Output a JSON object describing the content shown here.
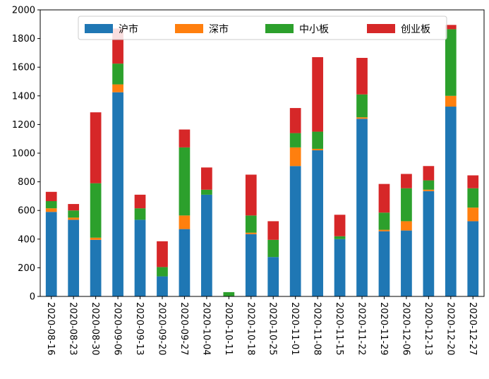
{
  "chart_data": {
    "type": "bar",
    "stacked": true,
    "title": "",
    "xlabel": "",
    "ylabel": "",
    "ylim": [
      0,
      2000
    ],
    "yticks": [
      0,
      200,
      400,
      600,
      800,
      1000,
      1200,
      1400,
      1600,
      1800,
      2000
    ],
    "ytick_labels": [
      "0",
      "200",
      "400",
      "600",
      "800",
      "1000",
      "1200",
      "1400",
      "1600",
      "1800",
      "2000"
    ],
    "grid": false,
    "legend_position": "top",
    "categories": [
      "2020-08-16",
      "2020-08-23",
      "2020-08-30",
      "2020-09-06",
      "2020-09-13",
      "2020-09-20",
      "2020-09-27",
      "2020-10-04",
      "2020-10-11",
      "2020-10-18",
      "2020-10-25",
      "2020-11-01",
      "2020-11-08",
      "2020-11-15",
      "2020-11-22",
      "2020-11-29",
      "2020-12-06",
      "2020-12-13",
      "2020-12-20",
      "2020-12-27"
    ],
    "series": [
      {
        "name": "沪市",
        "color": "#1f77b4",
        "values": [
          590,
          535,
          395,
          1425,
          535,
          140,
          470,
          710,
          0,
          435,
          275,
          910,
          1020,
          400,
          1240,
          455,
          460,
          735,
          1325,
          525
        ]
      },
      {
        "name": "深市",
        "color": "#ff7f0e",
        "values": [
          25,
          15,
          15,
          55,
          0,
          0,
          95,
          0,
          0,
          10,
          0,
          130,
          10,
          0,
          10,
          10,
          65,
          10,
          75,
          95
        ]
      },
      {
        "name": "中小板",
        "color": "#2ca02c",
        "values": [
          50,
          50,
          380,
          145,
          80,
          65,
          475,
          35,
          30,
          120,
          120,
          100,
          120,
          20,
          160,
          120,
          230,
          65,
          465,
          135
        ]
      },
      {
        "name": "创业板",
        "color": "#d62728",
        "values": [
          65,
          45,
          495,
          245,
          95,
          180,
          125,
          155,
          0,
          285,
          130,
          175,
          520,
          150,
          255,
          200,
          100,
          100,
          30,
          90
        ]
      }
    ]
  }
}
